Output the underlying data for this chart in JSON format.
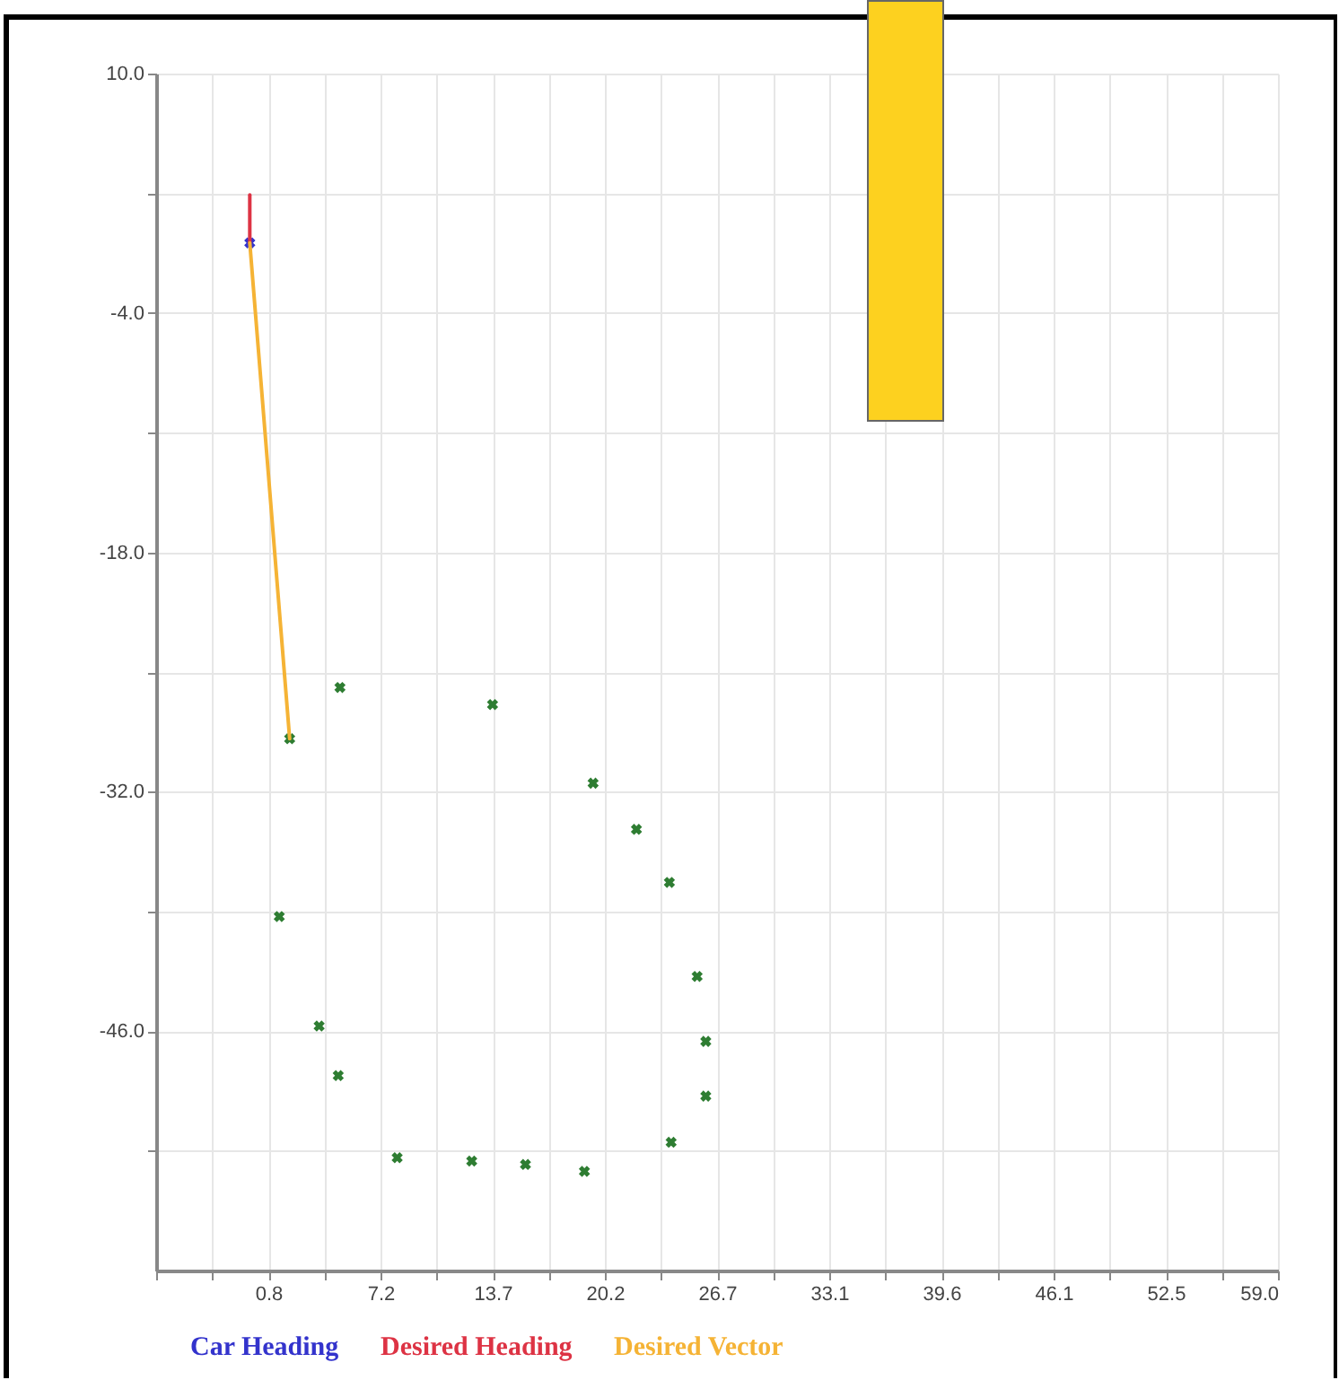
{
  "chart_data": {
    "type": "scatter",
    "xlim": [
      -5.7,
      59.0
    ],
    "xticks": [
      {
        "value": -5.7,
        "label": null
      },
      {
        "value": -2.465,
        "label": null
      },
      {
        "value": 0.77,
        "label": "0.8"
      },
      {
        "value": 4.005,
        "label": null
      },
      {
        "value": 7.24,
        "label": "7.2"
      },
      {
        "value": 10.475,
        "label": null
      },
      {
        "value": 13.71,
        "label": "13.7"
      },
      {
        "value": 16.945,
        "label": null
      },
      {
        "value": 20.18,
        "label": "20.2"
      },
      {
        "value": 23.415,
        "label": null
      },
      {
        "value": 26.65,
        "label": "26.7"
      },
      {
        "value": 29.885,
        "label": null
      },
      {
        "value": 33.12,
        "label": "33.1"
      },
      {
        "value": 36.355,
        "label": null
      },
      {
        "value": 39.59,
        "label": "39.6"
      },
      {
        "value": 42.825,
        "label": null
      },
      {
        "value": 46.06,
        "label": "46.1"
      },
      {
        "value": 49.295,
        "label": null
      },
      {
        "value": 52.53,
        "label": "52.5"
      },
      {
        "value": 55.765,
        "label": null
      },
      {
        "value": 59.0,
        "label": "59.0"
      }
    ],
    "ylim": [
      -60,
      10
    ],
    "yticks": [
      {
        "value": 10,
        "label": "10.0"
      },
      {
        "value": 3,
        "label": null
      },
      {
        "value": -4,
        "label": "-4.0"
      },
      {
        "value": -11,
        "label": null
      },
      {
        "value": -18,
        "label": "-18.0"
      },
      {
        "value": -25,
        "label": null
      },
      {
        "value": -32,
        "label": "-32.0"
      },
      {
        "value": -39,
        "label": null
      },
      {
        "value": -46,
        "label": "-46.0"
      },
      {
        "value": -53,
        "label": null
      }
    ],
    "grid": true,
    "legend": "bottom left",
    "marker": "cross",
    "series": [
      {
        "color": "#2e7d32",
        "x": [
          4.9,
          13.7,
          2.0,
          19.5,
          22.0,
          23.9,
          1.4,
          25.5,
          3.7,
          26.0,
          4.8,
          26.0,
          24.0,
          8.2,
          12.5,
          15.6,
          19.0
        ],
        "values": [
          -25.9,
          -26.9,
          -28.9,
          -31.5,
          -34.2,
          -37.3,
          -39.3,
          -42.8,
          -45.7,
          -46.6,
          -48.6,
          -49.8,
          -52.5,
          -53.4,
          -53.6,
          -53.8,
          -54.2
        ]
      },
      {
        "type": "scatter",
        "name": "Car Heading",
        "color": "#3333cc",
        "x": [
          -0.3
        ],
        "values": [
          0.1
        ]
      },
      {
        "type": "line",
        "marker": "none",
        "name": "Desired Heading",
        "color": "#dd3344",
        "x": [
          -0.3,
          -0.3
        ],
        "values": [
          0.1,
          2.9
        ]
      },
      {
        "type": "line",
        "marker": "none",
        "name": "Desired Vector",
        "color": "#f5b335",
        "x": [
          -0.3,
          2.0
        ],
        "values": [
          0.1,
          -28.9
        ]
      }
    ]
  }
}
